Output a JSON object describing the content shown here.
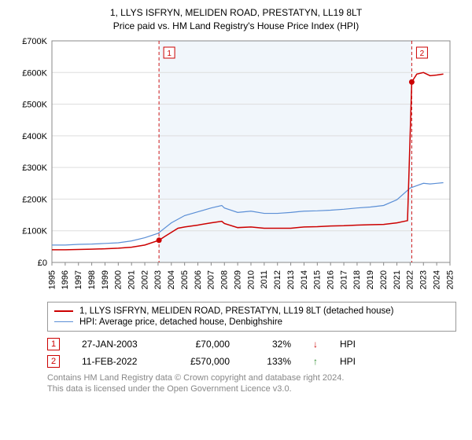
{
  "title_line1": "1, LLYS ISFRYN, MELIDEN ROAD, PRESTATYN, LL19 8LT",
  "title_line2": "Price paid vs. HM Land Registry's House Price Index (HPI)",
  "chart": {
    "type": "line",
    "background_color": "#ffffff",
    "plot_band_color": "#f1f6fb",
    "plot_band_start_year": 2003.07,
    "plot_band_end_year": 2022.12,
    "grid_color": "#dddddd",
    "axis_color": "#888888",
    "ylim": [
      0,
      700000
    ],
    "ytick_step": 100000,
    "ytick_labels": [
      "£0",
      "£100K",
      "£200K",
      "£300K",
      "£400K",
      "£500K",
      "£600K",
      "£700K"
    ],
    "xlim": [
      1995,
      2025
    ],
    "xticks": [
      1995,
      1996,
      1997,
      1998,
      1999,
      2000,
      2001,
      2002,
      2003,
      2004,
      2005,
      2006,
      2007,
      2008,
      2009,
      2010,
      2011,
      2012,
      2013,
      2014,
      2015,
      2016,
      2017,
      2018,
      2019,
      2020,
      2021,
      2022,
      2023,
      2024,
      2025
    ],
    "series": [
      {
        "id": "price_paid",
        "label": "1, LLYS ISFRYN, MELIDEN ROAD, PRESTATYN, LL19 8LT (detached house)",
        "color": "#cc0000",
        "line_width": 1.5,
        "points": [
          [
            1995,
            40000
          ],
          [
            1996,
            40000
          ],
          [
            1997,
            41000
          ],
          [
            1998,
            42000
          ],
          [
            1999,
            43000
          ],
          [
            2000,
            45000
          ],
          [
            2001,
            48000
          ],
          [
            2002,
            55000
          ],
          [
            2003.07,
            70000
          ],
          [
            2003.5,
            82000
          ],
          [
            2004,
            95000
          ],
          [
            2004.5,
            108000
          ],
          [
            2005,
            112000
          ],
          [
            2006,
            118000
          ],
          [
            2007,
            125000
          ],
          [
            2007.8,
            130000
          ],
          [
            2008,
            123000
          ],
          [
            2009,
            110000
          ],
          [
            2010,
            112000
          ],
          [
            2011,
            108000
          ],
          [
            2012,
            108000
          ],
          [
            2013,
            108000
          ],
          [
            2014,
            112000
          ],
          [
            2015,
            113000
          ],
          [
            2016,
            115000
          ],
          [
            2017,
            116000
          ],
          [
            2018,
            118000
          ],
          [
            2019,
            119000
          ],
          [
            2020,
            120000
          ],
          [
            2021,
            125000
          ],
          [
            2021.8,
            132000
          ],
          [
            2022.12,
            570000
          ],
          [
            2022.5,
            595000
          ],
          [
            2023,
            600000
          ],
          [
            2023.5,
            590000
          ],
          [
            2024,
            592000
          ],
          [
            2024.5,
            595000
          ]
        ]
      },
      {
        "id": "hpi",
        "label": "HPI: Average price, detached house, Denbighshire",
        "color": "#5b8fd6",
        "line_width": 1.2,
        "points": [
          [
            1995,
            55000
          ],
          [
            1996,
            55000
          ],
          [
            1997,
            57000
          ],
          [
            1998,
            58000
          ],
          [
            1999,
            60000
          ],
          [
            2000,
            62000
          ],
          [
            2001,
            68000
          ],
          [
            2002,
            78000
          ],
          [
            2003,
            92000
          ],
          [
            2004,
            125000
          ],
          [
            2005,
            148000
          ],
          [
            2006,
            160000
          ],
          [
            2007,
            172000
          ],
          [
            2007.8,
            180000
          ],
          [
            2008,
            172000
          ],
          [
            2009,
            158000
          ],
          [
            2010,
            162000
          ],
          [
            2011,
            155000
          ],
          [
            2012,
            155000
          ],
          [
            2013,
            158000
          ],
          [
            2014,
            162000
          ],
          [
            2015,
            163000
          ],
          [
            2016,
            165000
          ],
          [
            2017,
            168000
          ],
          [
            2018,
            172000
          ],
          [
            2019,
            175000
          ],
          [
            2020,
            180000
          ],
          [
            2021,
            198000
          ],
          [
            2022,
            235000
          ],
          [
            2023,
            250000
          ],
          [
            2023.5,
            248000
          ],
          [
            2024,
            250000
          ],
          [
            2024.5,
            252000
          ]
        ]
      }
    ],
    "markers": [
      {
        "num": "1",
        "year": 2003.07,
        "dot_y": 70000,
        "color": "#cc0000"
      },
      {
        "num": "2",
        "year": 2022.12,
        "dot_y": 570000,
        "color": "#cc0000"
      }
    ]
  },
  "legend": {
    "items": [
      {
        "color": "#cc0000",
        "label": "1, LLYS ISFRYN, MELIDEN ROAD, PRESTATYN, LL19 8LT (detached house)"
      },
      {
        "color": "#5b8fd6",
        "label": "HPI: Average price, detached house, Denbighshire"
      }
    ]
  },
  "marker_table": {
    "rows": [
      {
        "num": "1",
        "color": "#cc0000",
        "date": "27-JAN-2003",
        "price": "£70,000",
        "pct": "32%",
        "arrow": "↓",
        "arrow_color": "#cc0000",
        "suffix": "HPI"
      },
      {
        "num": "2",
        "color": "#cc0000",
        "date": "11-FEB-2022",
        "price": "£570,000",
        "pct": "133%",
        "arrow": "↑",
        "arrow_color": "#2a8a2a",
        "suffix": "HPI"
      }
    ]
  },
  "attribution": {
    "line1": "Contains HM Land Registry data © Crown copyright and database right 2024.",
    "line2": "This data is licensed under the Open Government Licence v3.0."
  }
}
